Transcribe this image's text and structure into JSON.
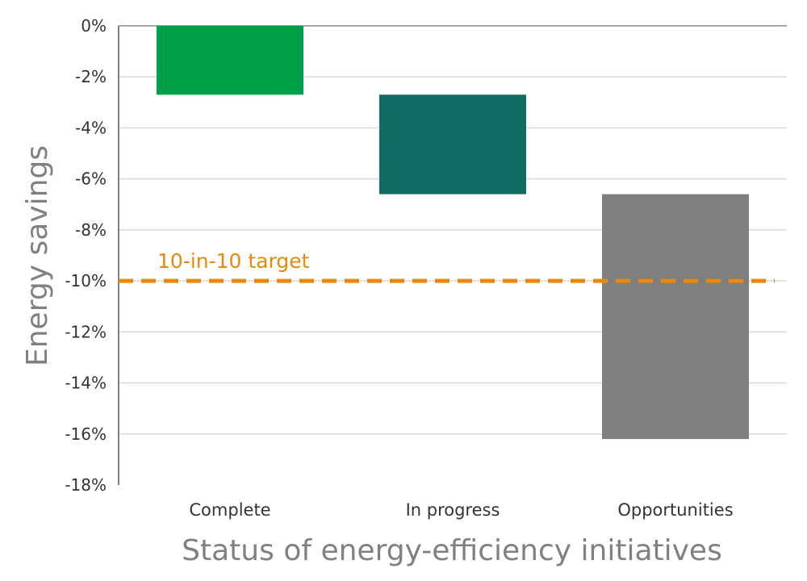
{
  "chart_data": {
    "type": "bar",
    "subtype": "waterfall",
    "title": "",
    "xlabel": "Status of energy-efficiency initiatives",
    "ylabel": "Energy savings",
    "ylim": [
      -18,
      0
    ],
    "yticks": [
      0,
      -2,
      -4,
      -6,
      -8,
      -10,
      -12,
      -14,
      -16,
      -18
    ],
    "ytick_labels": [
      "0%",
      "-2%",
      "-4%",
      "-6%",
      "-8%",
      "-10%",
      "-12%",
      "-14%",
      "-16%",
      "-18%"
    ],
    "grid": true,
    "categories": [
      "Complete",
      "In progress",
      "Opportunities"
    ],
    "bars": [
      {
        "category": "Complete",
        "start": 0,
        "end": -2.7,
        "color": "#00A04B"
      },
      {
        "category": "In progress",
        "start": -2.7,
        "end": -6.6,
        "color": "#116B62"
      },
      {
        "category": "Opportunities",
        "start": -6.6,
        "end": -16.2,
        "color": "#7F7F7F"
      }
    ],
    "target_line": {
      "label": "10-in-10 target",
      "value": -10,
      "color": "#E8890C"
    }
  }
}
